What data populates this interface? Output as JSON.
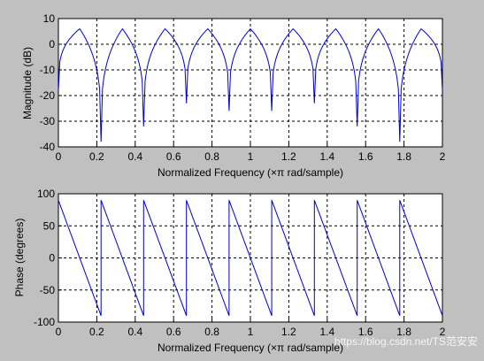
{
  "window": {
    "background": "#c0c0c0"
  },
  "watermark": "https://blog.csdn.net/TS范安安",
  "chart_data": [
    {
      "type": "line",
      "xlabel": "Normalized Frequency  (×π rad/sample)",
      "ylabel": "Magnitude (dB)",
      "xlim": [
        0,
        2
      ],
      "ylim": [
        -40,
        10
      ],
      "xticks": [
        "0",
        "0.2",
        "0.4",
        "0.6",
        "0.8",
        "1",
        "1.2",
        "1.4",
        "1.6",
        "1.8",
        "2"
      ],
      "yticks": [
        "10",
        "0",
        "-10",
        "-20",
        "-30",
        "-40"
      ],
      "grid": true,
      "line_color": "#0000cc",
      "x": [
        0,
        0.111,
        0.222,
        0.333,
        0.444,
        0.556,
        0.667,
        0.778,
        0.889,
        1.0,
        1.111,
        1.222,
        1.333,
        1.444,
        1.556,
        1.667,
        1.778,
        1.889,
        2.0
      ],
      "y": [
        -18,
        6,
        -38,
        6,
        -32,
        6,
        -23,
        6,
        -26,
        6,
        -26,
        6,
        -23,
        6,
        -32,
        6,
        -38,
        6,
        -18
      ]
    },
    {
      "type": "line",
      "xlabel": "Normalized Frequency  (×π rad/sample)",
      "ylabel": "Phase (degrees)",
      "xlim": [
        0,
        2
      ],
      "ylim": [
        -100,
        100
      ],
      "xticks": [
        "0",
        "0.2",
        "0.4",
        "0.6",
        "0.8",
        "1",
        "1.2",
        "1.4",
        "1.6",
        "1.8",
        "2"
      ],
      "yticks": [
        "100",
        "50",
        "0",
        "-50",
        "-100"
      ],
      "grid": true,
      "line_color": "#0000cc",
      "x": [
        0,
        0.222,
        0.222,
        0.444,
        0.444,
        0.667,
        0.667,
        0.889,
        0.889,
        1.111,
        1.111,
        1.333,
        1.333,
        1.556,
        1.556,
        1.778,
        1.778,
        2.0
      ],
      "y": [
        90,
        -90,
        90,
        -90,
        90,
        -90,
        90,
        -90,
        90,
        -90,
        90,
        -90,
        90,
        -90,
        90,
        -90,
        90,
        -90
      ]
    }
  ]
}
